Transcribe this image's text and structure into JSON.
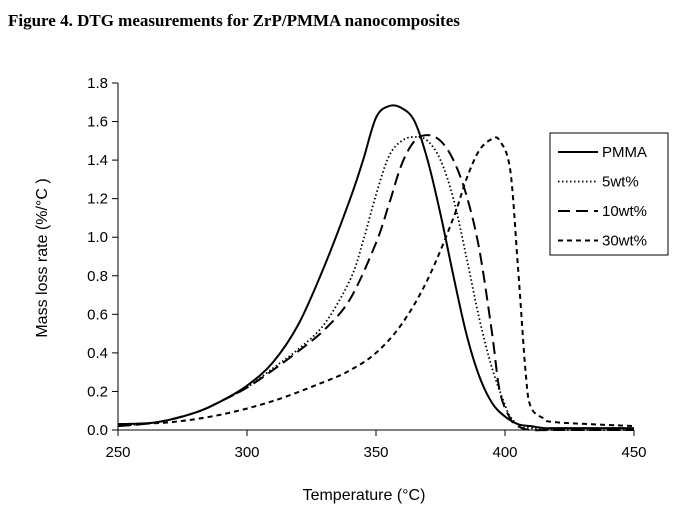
{
  "chart_data": {
    "type": "line",
    "title": "Figure 4. DTG measurements for ZrP/PMMA nanocomposites",
    "xlabel": "Temperature (°C)",
    "ylabel": "Mass loss rate (%/°C )",
    "xlim": [
      250,
      450
    ],
    "ylim": [
      0,
      1.8
    ],
    "xticks": [
      "250",
      "300",
      "350",
      "400",
      "450"
    ],
    "yticks": [
      "0.0",
      "0.2",
      "0.4",
      "0.6",
      "0.8",
      "1.0",
      "1.2",
      "1.4",
      "1.6",
      "1.8"
    ],
    "grid": false,
    "legend_position": "right",
    "series": [
      {
        "name": "PMMA",
        "style": "solid",
        "x": [
          250,
          265,
          280,
          290,
          300,
          310,
          320,
          330,
          340,
          345,
          350,
          355,
          360,
          365,
          370,
          375,
          380,
          385,
          390,
          395,
          400,
          405,
          410,
          415,
          420,
          430,
          450
        ],
        "y": [
          0.03,
          0.04,
          0.09,
          0.15,
          0.23,
          0.35,
          0.55,
          0.85,
          1.2,
          1.4,
          1.62,
          1.68,
          1.67,
          1.6,
          1.4,
          1.12,
          0.8,
          0.5,
          0.28,
          0.14,
          0.07,
          0.03,
          0.02,
          0.01,
          0.01,
          0.01,
          0.01
        ]
      },
      {
        "name": "5wt%",
        "style": "dotted",
        "x": [
          250,
          265,
          280,
          290,
          300,
          310,
          320,
          330,
          340,
          345,
          350,
          355,
          360,
          365,
          370,
          375,
          380,
          385,
          390,
          395,
          400,
          402,
          405,
          410,
          420,
          450
        ],
        "y": [
          0.02,
          0.04,
          0.09,
          0.15,
          0.22,
          0.32,
          0.42,
          0.55,
          0.78,
          0.98,
          1.22,
          1.42,
          1.5,
          1.52,
          1.5,
          1.4,
          1.2,
          0.9,
          0.58,
          0.32,
          0.13,
          0.07,
          0.03,
          0.01,
          0.0,
          0.0
        ]
      },
      {
        "name": "10wt%",
        "style": "dashed",
        "x": [
          250,
          265,
          280,
          290,
          300,
          310,
          320,
          330,
          340,
          350,
          355,
          360,
          365,
          370,
          375,
          380,
          385,
          390,
          395,
          398,
          402,
          405,
          410,
          420,
          450
        ],
        "y": [
          0.02,
          0.04,
          0.09,
          0.15,
          0.22,
          0.31,
          0.41,
          0.52,
          0.68,
          0.97,
          1.17,
          1.38,
          1.5,
          1.53,
          1.5,
          1.4,
          1.22,
          0.94,
          0.5,
          0.2,
          0.06,
          0.02,
          0.0,
          0.0,
          0.0
        ]
      },
      {
        "name": "30wt%",
        "style": "short-dash",
        "x": [
          250,
          270,
          290,
          310,
          330,
          340,
          350,
          360,
          370,
          380,
          385,
          390,
          395,
          398,
          402,
          405,
          408,
          410,
          415,
          420,
          450
        ],
        "y": [
          0.03,
          0.04,
          0.08,
          0.15,
          0.25,
          0.31,
          0.4,
          0.55,
          0.78,
          1.1,
          1.3,
          1.45,
          1.51,
          1.5,
          1.35,
          0.85,
          0.3,
          0.12,
          0.06,
          0.04,
          0.02
        ]
      }
    ]
  }
}
